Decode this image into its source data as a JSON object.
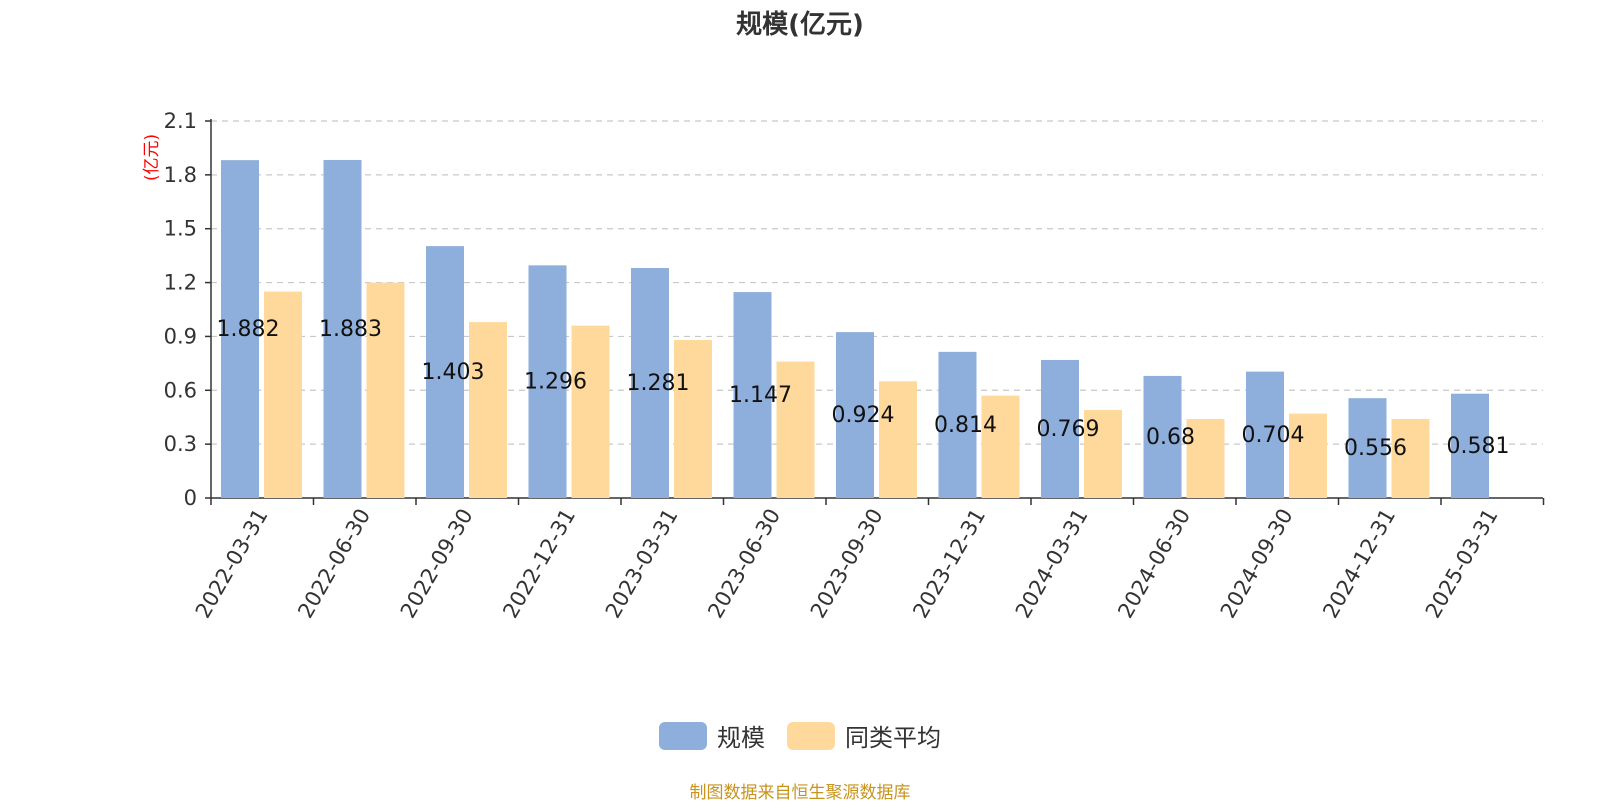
{
  "chart_data": {
    "type": "bar",
    "title": "规模(亿元)",
    "ylabel": "(亿元)",
    "xlabel": "",
    "ylim": [
      0,
      2.1
    ],
    "yticks": [
      "0",
      "0.3",
      "0.6",
      "0.9",
      "1.2",
      "1.5",
      "1.8",
      "2.1"
    ],
    "grid": true,
    "legend_position": "bottom-center",
    "categories": [
      "2022-03-31",
      "2022-06-30",
      "2022-09-30",
      "2022-12-31",
      "2023-03-31",
      "2023-06-30",
      "2023-09-30",
      "2023-12-31",
      "2024-03-31",
      "2024-06-30",
      "2024-09-30",
      "2024-12-31",
      "2025-03-31"
    ],
    "series": [
      {
        "name": "规模",
        "color": "#8eaedb",
        "values": [
          1.882,
          1.883,
          1.403,
          1.296,
          1.281,
          1.147,
          0.924,
          0.814,
          0.769,
          0.68,
          0.704,
          0.556,
          0.581
        ],
        "labels": [
          "1.882",
          "1.883",
          "1.403",
          "1.296",
          "1.281",
          "1.147",
          "0.924",
          "0.814",
          "0.769",
          "0.68",
          "0.704",
          "0.556",
          "0.581"
        ]
      },
      {
        "name": "同类平均",
        "color": "#fed99b",
        "values": [
          1.15,
          1.2,
          0.98,
          0.96,
          0.88,
          0.76,
          0.65,
          0.57,
          0.49,
          0.44,
          0.47,
          0.44,
          null
        ]
      }
    ]
  },
  "footer": {
    "source": "制图数据来自恒生聚源数据库"
  }
}
